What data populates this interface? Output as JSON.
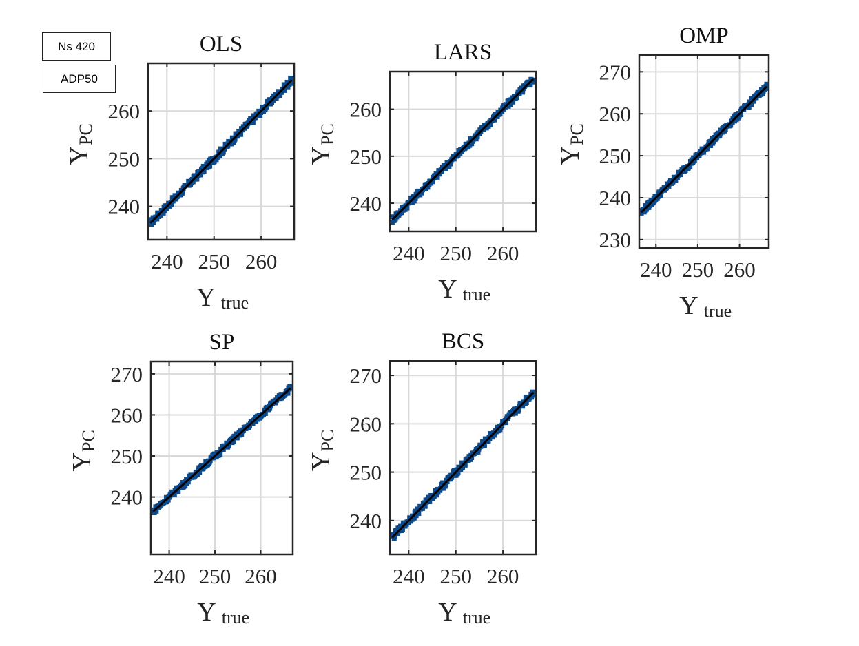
{
  "legend_tags": [
    "Ns 420",
    "ADP50"
  ],
  "marker_color": "#0d4a8c",
  "fit_line_color": "#000000",
  "chart_data": [
    {
      "type": "scatter",
      "title": "OLS",
      "xlabel": "Y",
      "xlabel_sub": "true",
      "ylabel": "Y",
      "ylabel_sub": "PC",
      "xlim": [
        236,
        267
      ],
      "ylim": [
        233,
        270
      ],
      "xticks": [
        240,
        250,
        260
      ],
      "yticks": [
        240,
        250,
        260
      ],
      "grid": true,
      "series": [
        {
          "x": [
            236.5,
            240,
            245,
            250,
            255,
            260,
            266.5
          ],
          "y": [
            236.5,
            240,
            245,
            250,
            255,
            260,
            266.5
          ]
        }
      ]
    },
    {
      "type": "scatter",
      "title": "LARS",
      "xlabel": "Y",
      "xlabel_sub": "true",
      "ylabel": "Y",
      "ylabel_sub": "PC",
      "xlim": [
        236,
        267
      ],
      "ylim": [
        234,
        268
      ],
      "xticks": [
        240,
        250,
        260
      ],
      "yticks": [
        240,
        250,
        260
      ],
      "grid": true,
      "series": [
        {
          "x": [
            236.5,
            240,
            245,
            250,
            255,
            260,
            266.5
          ],
          "y": [
            236.5,
            240,
            245,
            250,
            255,
            260,
            266.5
          ]
        }
      ]
    },
    {
      "type": "scatter",
      "title": "OMP",
      "xlabel": "Y",
      "xlabel_sub": "true",
      "ylabel": "Y",
      "ylabel_sub": "PC",
      "xlim": [
        236,
        267
      ],
      "ylim": [
        228,
        274
      ],
      "xticks": [
        240,
        250,
        260
      ],
      "yticks": [
        230,
        240,
        250,
        260,
        270
      ],
      "grid": true,
      "series": [
        {
          "x": [
            236.5,
            240,
            245,
            250,
            255,
            260,
            266.5
          ],
          "y": [
            236.5,
            240,
            245,
            250,
            255,
            260,
            266.5
          ]
        }
      ]
    },
    {
      "type": "scatter",
      "title": "SP",
      "xlabel": "Y",
      "xlabel_sub": "true",
      "ylabel": "Y",
      "ylabel_sub": "PC",
      "xlim": [
        236,
        267
      ],
      "ylim": [
        226,
        273
      ],
      "xticks": [
        240,
        250,
        260
      ],
      "yticks": [
        240,
        250,
        260,
        270
      ],
      "grid": true,
      "series": [
        {
          "x": [
            236.5,
            240,
            245,
            250,
            255,
            260,
            266.5
          ],
          "y": [
            236.5,
            240,
            245,
            250,
            255,
            260,
            266.5
          ]
        }
      ]
    },
    {
      "type": "scatter",
      "title": "BCS",
      "xlabel": "Y",
      "xlabel_sub": "true",
      "ylabel": "Y",
      "ylabel_sub": "PC",
      "xlim": [
        236,
        267
      ],
      "ylim": [
        233,
        273
      ],
      "xticks": [
        240,
        250,
        260
      ],
      "yticks": [
        240,
        250,
        260,
        270
      ],
      "grid": true,
      "series": [
        {
          "x": [
            236.5,
            240,
            245,
            250,
            255,
            260,
            266.5
          ],
          "y": [
            236.5,
            240,
            245,
            250,
            255,
            260,
            266.5
          ]
        }
      ]
    }
  ]
}
